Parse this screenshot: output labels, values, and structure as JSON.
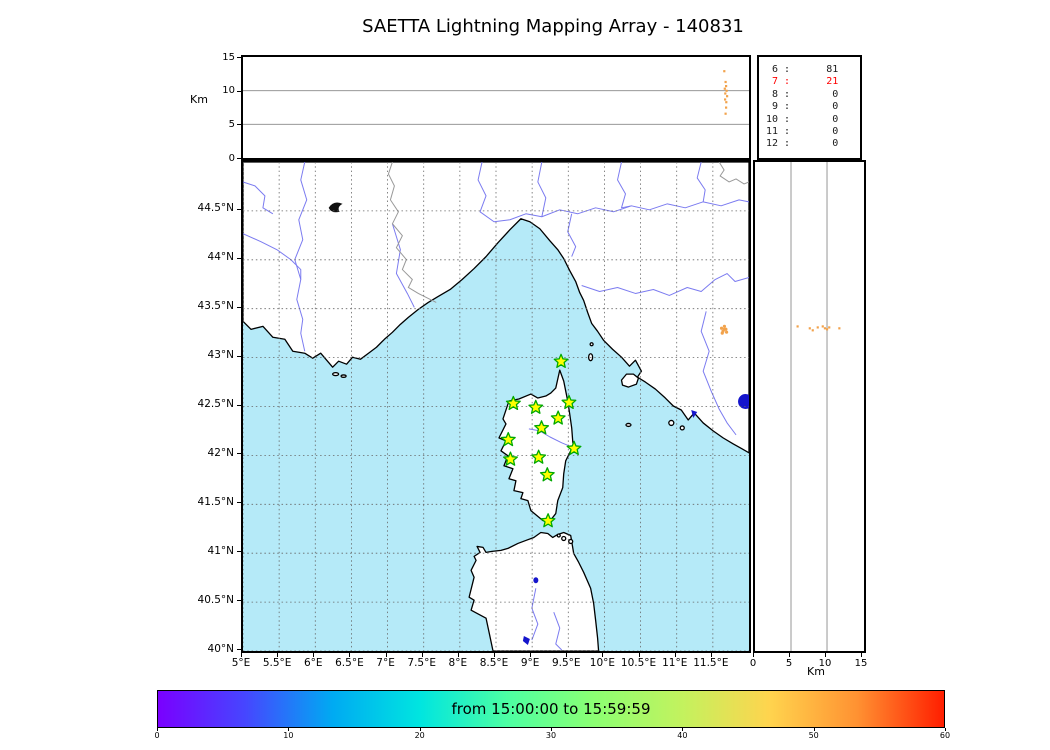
{
  "title": "SAETTA Lightning Mapping Array - 140831",
  "chart_data": {
    "type": "scatter",
    "title": "SAETTA Lightning Mapping Array - 140831",
    "panels": {
      "alt_time": {
        "ylabel": "Km",
        "ylim": [
          0,
          15
        ],
        "yticks": [
          15,
          10,
          5,
          0
        ],
        "gridlines_km": [
          5,
          10
        ],
        "point_color": "#f2a24b",
        "points": [
          {
            "t": 0.951,
            "km": 12.9
          },
          {
            "t": 0.9535,
            "km": 11.3
          },
          {
            "t": 0.9545,
            "km": 10.7
          },
          {
            "t": 0.952,
            "km": 10.3
          },
          {
            "t": 0.9555,
            "km": 10.0
          },
          {
            "t": 0.953,
            "km": 9.6
          },
          {
            "t": 0.9565,
            "km": 9.2
          },
          {
            "t": 0.9525,
            "km": 8.7
          },
          {
            "t": 0.955,
            "km": 8.3
          },
          {
            "t": 0.9545,
            "km": 7.5
          },
          {
            "t": 0.9535,
            "km": 6.6
          }
        ]
      },
      "station_histogram": {
        "rows": [
          {
            "stations": "6",
            "count": "81"
          },
          {
            "stations": "7",
            "count": "21"
          },
          {
            "stations": "8",
            "count": "0"
          },
          {
            "stations": "9",
            "count": "0"
          },
          {
            "stations": "10",
            "count": "0"
          },
          {
            "stations": "11",
            "count": "0"
          },
          {
            "stations": "12",
            "count": "0"
          }
        ],
        "highlight_index": 1,
        "highlight_color": "#ff0000",
        "text_color": "#1a1a1a"
      },
      "map": {
        "lon_range": [
          5,
          12
        ],
        "lat_range": [
          40,
          45
        ],
        "lon_ticks": [
          5,
          5.5,
          6,
          6.5,
          7,
          7.5,
          8,
          8.5,
          9,
          9.5,
          10,
          10.5,
          11,
          11.5
        ],
        "lon_tick_labels": [
          "5°E",
          "5.5°E",
          "6°E",
          "6.5°E",
          "7°E",
          "7.5°E",
          "8°E",
          "8.5°E",
          "9°E",
          "9.5°E",
          "10°E",
          "10.5°E",
          "11°E",
          "11.5°E"
        ],
        "lat_ticks": [
          44.5,
          44,
          43.5,
          43,
          42.5,
          42,
          41.5,
          41,
          40.5,
          40
        ],
        "lat_tick_labels": [
          "44.5°N",
          "44°N",
          "43.5°N",
          "43°N",
          "42.5°N",
          "42°N",
          "41.5°N",
          "41°N",
          "40.5°N",
          "40°N"
        ],
        "sea_color": "#b5eaf8",
        "land_color": "#ffffff",
        "coast_color": "#000000",
        "river_color": "#7b7bf0",
        "border_color": "#999999",
        "lake_color": "#1515cc",
        "grid_color": "#666666",
        "station_fill": "#ffff00",
        "station_edge": "#00a800",
        "flash_color": "#f2a24b",
        "stations_lonlat": [
          [
            9.4,
            42.96
          ],
          [
            8.74,
            42.53
          ],
          [
            9.05,
            42.49
          ],
          [
            9.51,
            42.54
          ],
          [
            9.36,
            42.38
          ],
          [
            9.13,
            42.28
          ],
          [
            8.67,
            42.16
          ],
          [
            9.58,
            42.07
          ],
          [
            8.7,
            41.96
          ],
          [
            9.09,
            41.98
          ],
          [
            9.21,
            41.8
          ],
          [
            9.22,
            41.33
          ]
        ],
        "lightning_lonlat": [
          [
            11.62,
            43.3
          ],
          [
            11.66,
            43.32
          ],
          [
            11.68,
            43.29
          ],
          [
            11.64,
            43.27
          ],
          [
            11.69,
            43.26
          ],
          [
            11.66,
            43.29
          ],
          [
            11.63,
            43.25
          ]
        ]
      },
      "alt_lat": {
        "xlabel": "Km",
        "xlim": [
          0,
          15
        ],
        "xticks": [
          0,
          5,
          10,
          15
        ],
        "gridlines_km": [
          5,
          10
        ],
        "points": [
          {
            "km": 5.9,
            "lat": 43.32
          },
          {
            "km": 7.6,
            "lat": 43.3
          },
          {
            "km": 8.0,
            "lat": 43.28
          },
          {
            "km": 8.7,
            "lat": 43.31
          },
          {
            "km": 9.4,
            "lat": 43.32
          },
          {
            "km": 9.7,
            "lat": 43.3
          },
          {
            "km": 10.0,
            "lat": 43.29
          },
          {
            "km": 10.3,
            "lat": 43.31
          },
          {
            "km": 11.7,
            "lat": 43.3
          }
        ]
      },
      "colorbar": {
        "label": "from 15:00:00 to 15:59:59",
        "range": [
          0,
          60
        ],
        "ticks": [
          0,
          10,
          20,
          30,
          40,
          50,
          60
        ],
        "tick_labels": [
          "0",
          "10",
          "20",
          "30",
          "40",
          "50",
          "60"
        ],
        "gradient": [
          "#7a00ff",
          "#4646ff",
          "#00aaf2",
          "#00e5e0",
          "#4cffa3",
          "#8cff72",
          "#c3f25e",
          "#ffd44e",
          "#ff9232",
          "#ff1e00"
        ]
      }
    }
  }
}
